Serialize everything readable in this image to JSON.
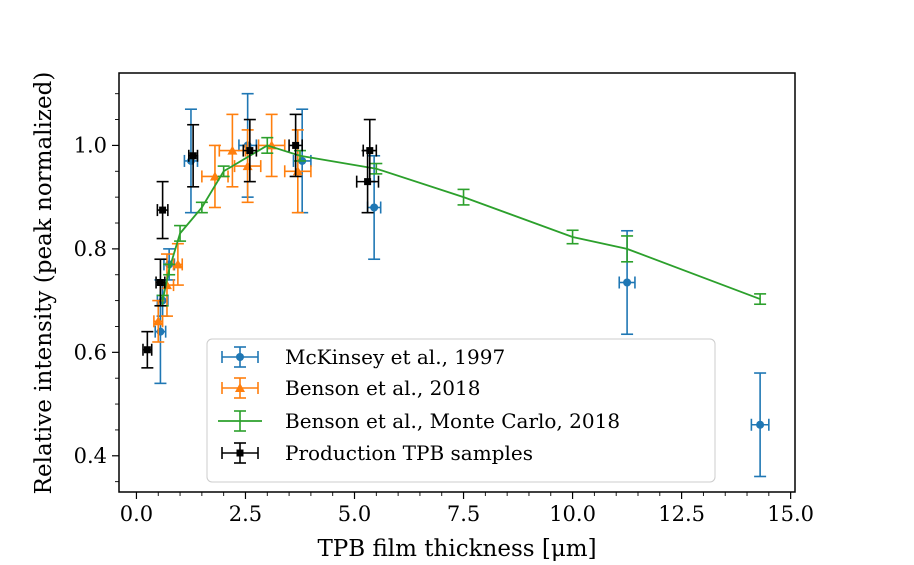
{
  "chart_data": {
    "type": "scatter",
    "xlabel": "TPB film thickness [μm]",
    "ylabel": "Relative intensity (peak normalized)",
    "xlim": [
      -0.4,
      15.1
    ],
    "ylim": [
      0.33,
      1.14
    ],
    "xticks": [
      0.0,
      2.5,
      5.0,
      7.5,
      10.0,
      12.5,
      15.0
    ],
    "xtick_labels": [
      "0.0",
      "2.5",
      "5.0",
      "7.5",
      "10.0",
      "12.5",
      "15.0"
    ],
    "yticks": [
      0.4,
      0.6,
      0.8,
      1.0
    ],
    "ytick_labels": [
      "0.4",
      "0.6",
      "0.8",
      "1.0"
    ],
    "legend_position": "lower-center",
    "series": [
      {
        "name": "McKinsey et al., 1997",
        "color": "#1f77b4",
        "marker": "circle",
        "style": "errorbar",
        "points": [
          {
            "x": 0.55,
            "y": 0.64,
            "xerr": 0.12,
            "yerr": 0.1
          },
          {
            "x": 0.6,
            "y": 0.7,
            "xerr": 0.12,
            "yerr": 0.03
          },
          {
            "x": 0.75,
            "y": 0.77,
            "xerr": 0.12,
            "yerr": 0.03
          },
          {
            "x": 1.25,
            "y": 0.97,
            "xerr": 0.15,
            "yerr": 0.1
          },
          {
            "x": 2.55,
            "y": 1.0,
            "xerr": 0.2,
            "yerr": 0.1
          },
          {
            "x": 3.8,
            "y": 0.97,
            "xerr": 0.2,
            "yerr": 0.1
          },
          {
            "x": 5.45,
            "y": 0.88,
            "xerr": 0.15,
            "yerr": 0.1
          },
          {
            "x": 11.25,
            "y": 0.735,
            "xerr": 0.18,
            "yerr": 0.1
          },
          {
            "x": 14.3,
            "y": 0.46,
            "xerr": 0.2,
            "yerr": 0.1
          }
        ]
      },
      {
        "name": "Benson et al., 2018",
        "color": "#ff7f0e",
        "marker": "triangle",
        "style": "errorbar",
        "points": [
          {
            "x": 0.5,
            "y": 0.66,
            "xerr": 0.1,
            "yerr": 0.04
          },
          {
            "x": 0.7,
            "y": 0.73,
            "xerr": 0.15,
            "yerr": 0.06
          },
          {
            "x": 0.95,
            "y": 0.77,
            "xerr": 0.1,
            "yerr": 0.04
          },
          {
            "x": 1.8,
            "y": 0.94,
            "xerr": 0.3,
            "yerr": 0.06
          },
          {
            "x": 2.2,
            "y": 0.99,
            "xerr": 0.3,
            "yerr": 0.07
          },
          {
            "x": 2.55,
            "y": 0.96,
            "xerr": 0.3,
            "yerr": 0.07
          },
          {
            "x": 3.1,
            "y": 1.0,
            "xerr": 0.3,
            "yerr": 0.06
          },
          {
            "x": 3.7,
            "y": 0.95,
            "xerr": 0.3,
            "yerr": 0.08
          }
        ]
      },
      {
        "name": "Benson et al., Monte Carlo, 2018",
        "color": "#2ca02c",
        "marker": "none",
        "style": "line-errorbar",
        "points": [
          {
            "x": 0.6,
            "y": 0.7,
            "yerr": 0.01
          },
          {
            "x": 0.75,
            "y": 0.76,
            "yerr": 0.01
          },
          {
            "x": 1.0,
            "y": 0.83,
            "yerr": 0.015
          },
          {
            "x": 1.5,
            "y": 0.88,
            "yerr": 0.01
          },
          {
            "x": 2.0,
            "y": 0.95,
            "yerr": 0.01
          },
          {
            "x": 3.0,
            "y": 1.0,
            "yerr": 0.015
          },
          {
            "x": 3.75,
            "y": 0.98,
            "yerr": 0.01
          },
          {
            "x": 5.5,
            "y": 0.955,
            "yerr": 0.01
          },
          {
            "x": 7.5,
            "y": 0.9,
            "yerr": 0.015
          },
          {
            "x": 10.0,
            "y": 0.823,
            "yerr": 0.013
          },
          {
            "x": 11.25,
            "y": 0.8,
            "yerr": 0.025
          },
          {
            "x": 14.3,
            "y": 0.703,
            "yerr": 0.01
          }
        ]
      },
      {
        "name": "Production TPB samples",
        "color": "#000000",
        "marker": "square",
        "style": "errorbar",
        "points": [
          {
            "x": 0.25,
            "y": 0.605,
            "xerr": 0.1,
            "yerr": 0.035
          },
          {
            "x": 0.55,
            "y": 0.735,
            "xerr": 0.1,
            "yerr": 0.045
          },
          {
            "x": 0.6,
            "y": 0.875,
            "xerr": 0.12,
            "yerr": 0.055
          },
          {
            "x": 1.3,
            "y": 0.98,
            "xerr": 0.1,
            "yerr": 0.06
          },
          {
            "x": 2.6,
            "y": 0.99,
            "xerr": 0.15,
            "yerr": 0.06
          },
          {
            "x": 3.65,
            "y": 1.0,
            "xerr": 0.15,
            "yerr": 0.06
          },
          {
            "x": 5.35,
            "y": 0.99,
            "xerr": 0.15,
            "yerr": 0.06
          },
          {
            "x": 5.3,
            "y": 0.93,
            "xerr": 0.25,
            "yerr": 0.06
          }
        ]
      }
    ]
  }
}
